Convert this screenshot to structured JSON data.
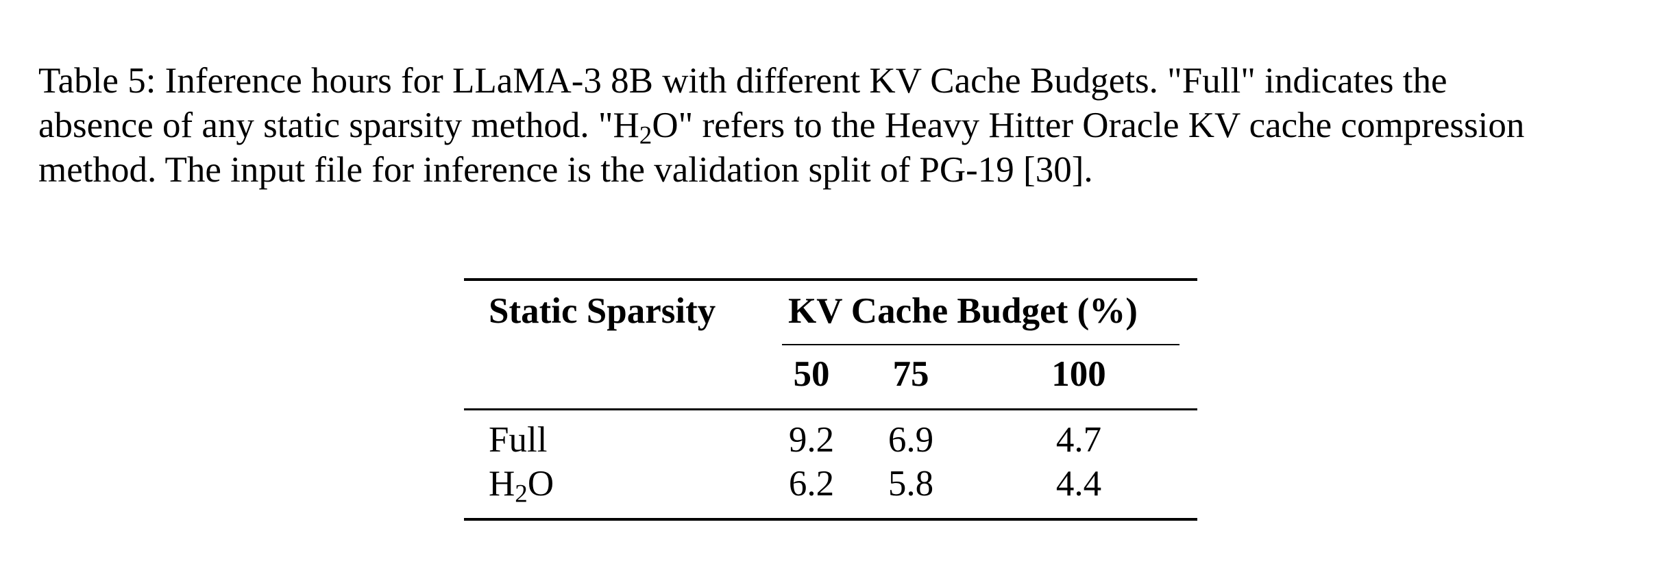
{
  "caption": {
    "line1": "Table 5: Inference hours for LLaMA-3 8B with different KV Cache Budgets. \"Full\" indicates the",
    "line2_pre": "absence of any static sparsity method. \"H",
    "line2_sub": "2",
    "line2_post": "O\" refers to the Heavy Hitter Oracle KV cache compression",
    "line3": "method. The input file for inference is the validation split of PG-19 [30]."
  },
  "table": {
    "header_row_label": "Static Sparsity",
    "header_group": "KV Cache Budget (%)",
    "budgets": [
      "50",
      "75",
      "100"
    ],
    "rows": [
      {
        "label": "Full",
        "label_sub": "",
        "label_post": "",
        "values": [
          "9.2",
          "6.9",
          "4.7"
        ]
      },
      {
        "label": "H",
        "label_sub": "2",
        "label_post": "O",
        "values": [
          "6.2",
          "5.8",
          "4.4"
        ]
      }
    ]
  }
}
